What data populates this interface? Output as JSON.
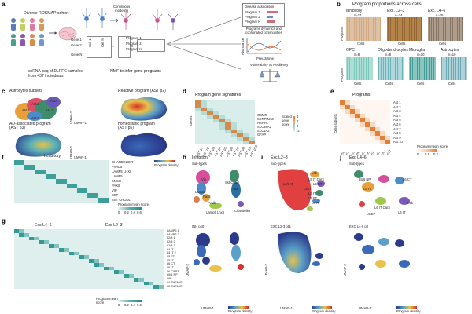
{
  "panel_letters": [
    "a",
    "b",
    "c",
    "d",
    "e",
    "f",
    "g",
    "h",
    "i",
    "j"
  ],
  "a": {
    "cohort_title": "Diverse ROSMAP cohort",
    "subtitle": "snRNA-seq of DLPFC samples\nfrom 437 individuals",
    "genes": [
      "Gene 1",
      "Gene 2",
      "Gene N"
    ],
    "cells_label": "Cell 1",
    "cells_label_m": "Cell M",
    "program_labels": [
      "Program 1",
      "Program 2",
      "Program K"
    ],
    "nmf_caption": "NMF to infer gene programs",
    "continuous_modeling": "Continuous\nmodeling",
    "disease_association": "Disease association",
    "prog_right": [
      "Program 1",
      "Program 2",
      "Program K"
    ],
    "dynamics_caption": "Programs dynamics and\ncoordinated communities",
    "pseudotime": "Pseudotime",
    "abundance": "Abundance",
    "vulnerability": "Vulnerability vs Resiliency",
    "times": "x"
  },
  "b": {
    "title": "Program proportions across cells",
    "top_groups": [
      {
        "name": "Inhibitory",
        "n": "n=17"
      },
      {
        "name": "Exc. L2–3",
        "n": "n=14"
      },
      {
        "name": "Exc. L4–6",
        "n": "n=15"
      }
    ],
    "bottom_groups": [
      {
        "name": "OPC",
        "n": "n=8"
      },
      {
        "name": "Oligodendrocytes",
        "n": "n=8"
      },
      {
        "name": "Microglia",
        "n": "n=10"
      },
      {
        "name": "Astrocytes",
        "n": "n=10"
      }
    ],
    "programs_axis": "Programs",
    "cells_axis": "Cells"
  },
  "c": {
    "titles": [
      "Astrocytes subsets",
      "Reactive program (AST p2)",
      "AD-associated program\n(AST p3)",
      "homeostatic program\n(AST p5)"
    ],
    "subset_labels": [
      "Ast.1",
      "Ast.2",
      "Ast.3",
      "Ast.4",
      "Ast.5"
    ],
    "umap1": "UMAP-1",
    "umap2": "UMAP-2",
    "density": "Program density"
  },
  "d": {
    "title": "Program gene signatures",
    "genes_axis": "Genes",
    "genes": [
      "OSMR",
      "SERPINA3",
      "HSPH1",
      "SLC38A2",
      "SLC1A2",
      "GFAP"
    ],
    "xticks": [
      "AST p1",
      "AST p2",
      "AST p3",
      "AST p4",
      "AST p5",
      "AST p6",
      "AST p7",
      "AST p8",
      "AST p9",
      "AST p10"
    ],
    "legend": "Scaled\ngene\nscore",
    "legend_ticks": [
      "-2",
      "0",
      "2",
      "4"
    ]
  },
  "e": {
    "title": "Programs",
    "rows": [
      "Ast 1",
      "Ast 2",
      "Ast 3",
      "Ast 4",
      "Ast 5",
      "Ast 6",
      "Ast 7",
      "Ast 8",
      "Ast 9",
      "Ast 10"
    ],
    "cols_axis": "Cells subsets",
    "xticks": [
      "p1",
      "p2",
      "p3",
      "p4",
      "p5",
      "p6",
      "p7",
      "p8",
      "p9",
      "p10"
    ],
    "legend": "Program mean score",
    "legend_ticks": [
      "0",
      "0.1",
      "0.2"
    ]
  },
  "f": {
    "title": "Inhibitory",
    "rows": [
      "CHANDELIER",
      "PVALB",
      "LAMP5 LHX6",
      "LAMP5",
      "SNCG",
      "PAX6",
      "VIP",
      "SST",
      "SST CHODL"
    ],
    "legend": "Program mean score",
    "legend_ticks": [
      "0",
      "0.2",
      "0.4",
      "0.6"
    ]
  },
  "g": {
    "title_left": "Exc L4–6",
    "title_right": "Exc L2–3",
    "rows_right": [
      "LAMP5 1",
      "LAMP5 2",
      "L2/3 1",
      "L2/3 2",
      "L2/3 3",
      "L4 IT",
      "L4 IT 2",
      "L5 ET",
      "L5 IT",
      "L6 CT",
      "L6 IT",
      "L6 CAR3",
      "L5/6 NP",
      "L6b",
      "L4 THEMIS",
      "L5 THEMIS"
    ],
    "legend": "Program mean\nscore",
    "legend_ticks": [
      "0",
      "0.2",
      "0.4",
      "0.6"
    ]
  },
  "h": {
    "title": "Inhibitory",
    "subtitle": "Sub-types",
    "labels": [
      "Vip",
      "Sst Chodl",
      "Lamp5",
      "Sst",
      "Pvalb",
      "Pax6",
      "Lamp5 Lhx6",
      "Chandelier"
    ],
    "program": "INH p10",
    "umap1": "UMAP-1",
    "umap2": "UMAP-2",
    "density": "Program density"
  },
  "i": {
    "title": "Exc L2–3",
    "subtitle": "Sub-types",
    "labels": [
      "L2/3 IT",
      "L4 IT",
      "L6b",
      "L5 IT Car3",
      "L6 CT",
      "L6 IT",
      "L5 ET",
      "L4 IT"
    ],
    "program": "EXC L2-3 p11",
    "umap1": "UMAP-1",
    "umap2": "UMAP-2",
    "density": "Program density"
  },
  "j": {
    "title": "Exc L4–6",
    "subtitle": "Sub-types",
    "labels": [
      "L5 IT",
      "L5/6 NP",
      "L6 IT Car3",
      "L5 ET",
      "L4 IT",
      "L6 CT",
      "L6b"
    ],
    "program": "EXC L4-6 p3",
    "umap1": "UMAP-1",
    "umap2": "UMAP-2",
    "density": "Program density"
  },
  "colors": {
    "heat_low": "#ffffff",
    "heat_mid": "#f5c9a8",
    "heat_high": "#e0782e",
    "teal_low": "#e8f4f2",
    "teal_high": "#1f8f8a",
    "density_low": "#2b3a8a",
    "density_high": "#d8302a"
  }
}
